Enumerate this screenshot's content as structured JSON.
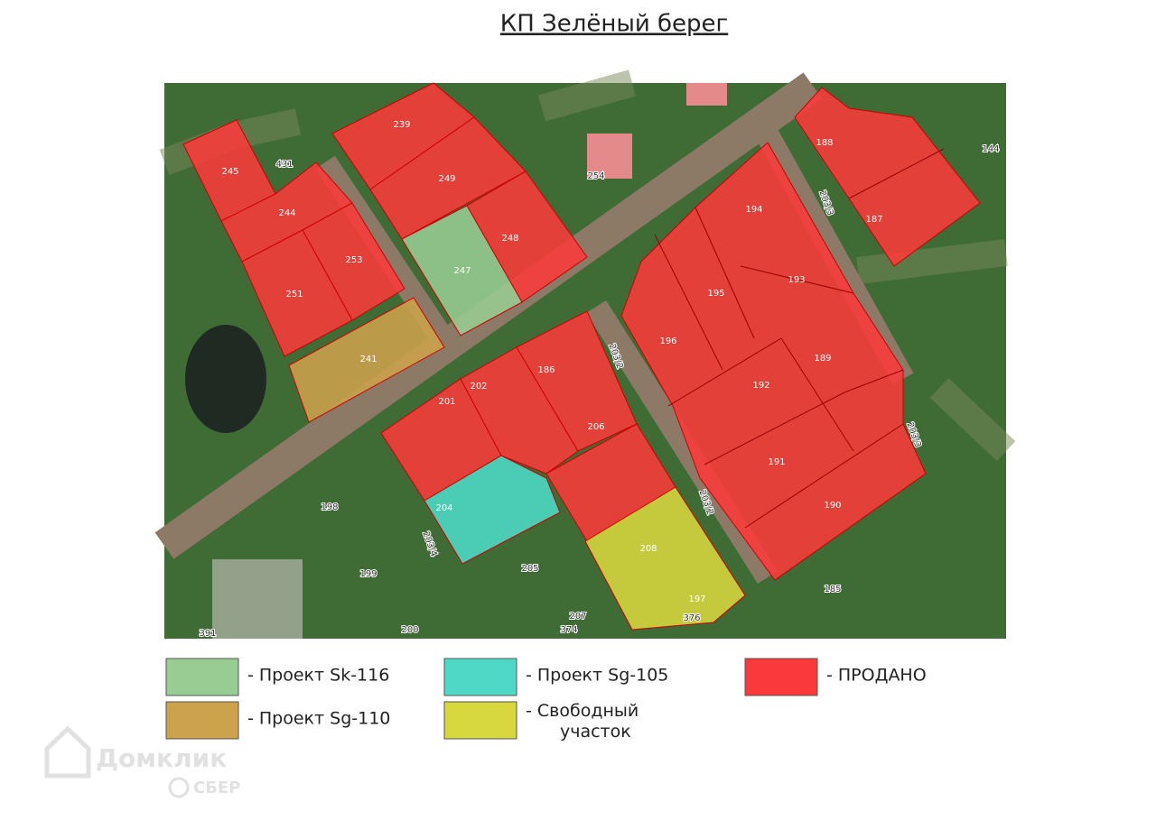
{
  "title": "КП Зелёный берег",
  "map": {
    "labels": [
      "239",
      "249",
      "248",
      "247",
      "245",
      "244",
      "253",
      "251",
      "241",
      "431",
      "254",
      "201",
      "202",
      "186",
      "206",
      "204",
      "208",
      "197",
      "196",
      "195",
      "194",
      "193",
      "192",
      "191",
      "190",
      "189",
      "188",
      "187",
      "203/2",
      "203/2",
      "203/3",
      "203/3",
      "203/4",
      "198",
      "199",
      "205",
      "185",
      "144",
      "200",
      "374",
      "391",
      "207",
      "376"
    ]
  },
  "legend": [
    {
      "label": "- Проект Sk-116",
      "color": "#98cc92"
    },
    {
      "label": "- Проект Sg-110",
      "color": "#cda24c"
    },
    {
      "label": "- Проект Sg-105",
      "color": "#4dd9c6"
    },
    {
      "label": "- Свободный участок",
      "color": "#d7d73e"
    },
    {
      "label": "- ПРОДАНО",
      "color": "#fa3a3a"
    }
  ],
  "watermark": {
    "brand": "Домклик",
    "bank": "СБЕР"
  }
}
